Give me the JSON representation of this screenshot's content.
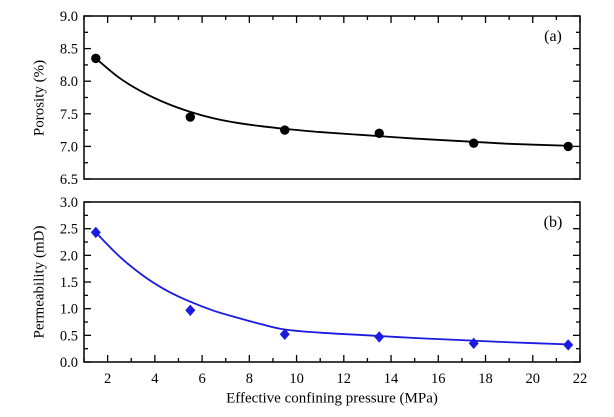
{
  "figure": {
    "background": "#ffffff",
    "axis_color": "#000000",
    "shared_xlabel": "Effective confining pressure (MPa)"
  },
  "chart_data": [
    {
      "type": "scatter",
      "panel_label": "(a)",
      "xlabel": "Effective confining pressure (MPa)",
      "ylabel": "Porosity (%)",
      "grid": false,
      "legend": "none",
      "xlim": [
        1,
        22
      ],
      "ylim": [
        6.5,
        9.0
      ],
      "x_major_ticks": [
        2,
        4,
        6,
        8,
        10,
        12,
        14,
        16,
        18,
        20,
        22
      ],
      "x_tick_labels": [
        "2",
        "4",
        "6",
        "8",
        "10",
        "12",
        "14",
        "16",
        "18",
        "20",
        "22"
      ],
      "x_minor_step": 1,
      "y_major_ticks": [
        6.5,
        7.0,
        7.5,
        8.0,
        8.5,
        9.0
      ],
      "y_tick_labels": [
        "6.5",
        "7.0",
        "7.5",
        "8.0",
        "8.5",
        "9.0"
      ],
      "y_minor_step": 0.25,
      "x_ticks_side": "top",
      "show_x_tick_labels": false,
      "series": [
        {
          "name": "porosity-measurements",
          "marker": "circle",
          "color": "#000000",
          "x": [
            1.5,
            5.5,
            9.5,
            13.5,
            17.5,
            21.5
          ],
          "y": [
            8.35,
            7.45,
            7.25,
            7.2,
            7.05,
            7.0
          ]
        }
      ],
      "fit_curve": {
        "name": "porosity-fit-curve",
        "color": "#000000",
        "x": [
          1.5,
          2.5,
          3.5,
          4.5,
          5.5,
          6.5,
          7.5,
          8.5,
          9.5,
          11,
          13,
          15,
          17,
          19,
          21.5
        ],
        "y": [
          8.35,
          8.05,
          7.83,
          7.66,
          7.53,
          7.43,
          7.36,
          7.31,
          7.27,
          7.22,
          7.17,
          7.12,
          7.08,
          7.04,
          7.01
        ]
      }
    },
    {
      "type": "scatter",
      "panel_label": "(b)",
      "xlabel": "Effective confining pressure (MPa)",
      "ylabel": "Permeability (mD)",
      "grid": false,
      "legend": "none",
      "xlim": [
        1,
        22
      ],
      "ylim": [
        0.0,
        3.0
      ],
      "x_major_ticks": [
        2,
        4,
        6,
        8,
        10,
        12,
        14,
        16,
        18,
        20,
        22
      ],
      "x_tick_labels": [
        "2",
        "4",
        "6",
        "8",
        "10",
        "12",
        "14",
        "16",
        "18",
        "20",
        "22"
      ],
      "x_minor_step": 1,
      "y_major_ticks": [
        0.0,
        0.5,
        1.0,
        1.5,
        2.0,
        2.5,
        3.0
      ],
      "y_tick_labels": [
        "0.0",
        "0.5",
        "1.0",
        "1.5",
        "2.0",
        "2.5",
        "3.0"
      ],
      "y_minor_step": 0.25,
      "x_ticks_side": "bottom",
      "show_x_tick_labels": true,
      "series": [
        {
          "name": "permeability-measurements",
          "marker": "diamond",
          "color": "#1a1ae0",
          "x": [
            1.5,
            5.5,
            9.5,
            13.5,
            17.5,
            21.5
          ],
          "y": [
            2.43,
            0.97,
            0.52,
            0.47,
            0.35,
            0.32
          ]
        }
      ],
      "fit_curve": {
        "name": "permeability-fit-curve",
        "color": "#1a1ae0",
        "x": [
          1.5,
          2.5,
          3.5,
          4.5,
          5.5,
          6.5,
          7.5,
          8.5,
          9.5,
          11,
          13,
          15,
          17,
          19,
          21.5
        ],
        "y": [
          2.43,
          1.98,
          1.62,
          1.34,
          1.13,
          0.96,
          0.83,
          0.71,
          0.61,
          0.55,
          0.5,
          0.45,
          0.41,
          0.37,
          0.33
        ]
      }
    }
  ]
}
